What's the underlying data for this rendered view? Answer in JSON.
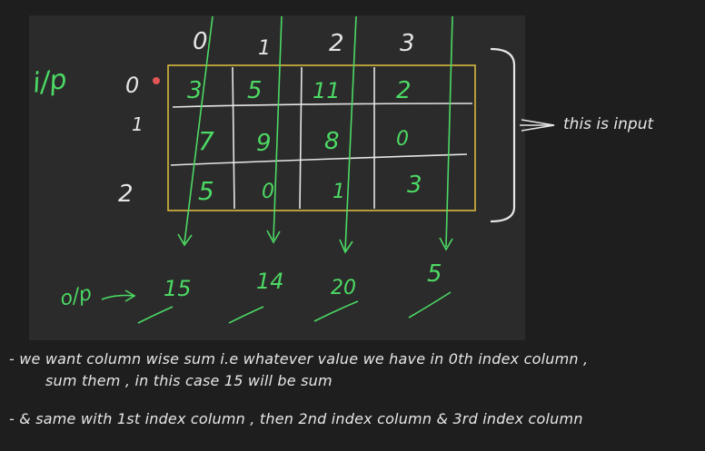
{
  "sketch": {
    "input_label": "i/p",
    "output_label": "o/p",
    "input_note": "this is input",
    "column_indices": [
      "0",
      "1",
      "2",
      "3"
    ],
    "row_indices": [
      "0",
      "1",
      "2"
    ],
    "matrix": [
      [
        "3",
        "5",
        "11",
        "2"
      ],
      [
        "7",
        "9",
        "8",
        "0"
      ],
      [
        "5",
        "0",
        "1",
        "3"
      ]
    ],
    "column_sums": [
      "15",
      "14",
      "20",
      "5"
    ]
  },
  "notes": [
    {
      "line1": "- we want column wise sum i.e whatever value we have in 0th index column ,",
      "line2": "sum them , in this case 15 will be sum"
    },
    {
      "line1": "- & same with 1st index column , then 2nd index column & 3rd index column",
      "line2": ""
    }
  ],
  "colors": {
    "background": "#1e1e1e",
    "board": "#2b2b2b",
    "ink_white": "#e6e6e6",
    "ink_green": "#4cd964",
    "ink_yellow": "#d9b93f",
    "pointer": "#e05555"
  }
}
